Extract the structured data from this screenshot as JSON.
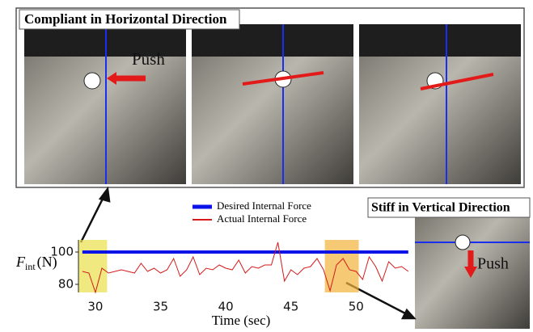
{
  "chart_data": {
    "type": "line",
    "panel_title": "Compliant in Horizontal Direction",
    "side_title": "Stiff in Vertical Direction",
    "push_labels": [
      "Push",
      "Push"
    ],
    "y_label": {
      "main": "F",
      "sub": "int",
      "unit": "(N)"
    },
    "x_label": "Time (sec)",
    "x": [
      29,
      29.5,
      30,
      30.5,
      31,
      31.5,
      32,
      32.5,
      33,
      33.5,
      34,
      34.5,
      35,
      35.5,
      36,
      36.5,
      37,
      37.5,
      38,
      38.5,
      39,
      39.5,
      40,
      40.5,
      41,
      41.5,
      42,
      42.5,
      43,
      43.5,
      44,
      44.5,
      45,
      45.5,
      46,
      46.5,
      47,
      47.5,
      48,
      48.5,
      49,
      49.5,
      50,
      50.5,
      51,
      51.5,
      52,
      52.5,
      53,
      53.5,
      54
    ],
    "series": [
      {
        "name": "Desired Internal Force",
        "color": "#0a14e6",
        "width": 4,
        "values": [
          100,
          100,
          100,
          100,
          100,
          100,
          100,
          100,
          100,
          100,
          100,
          100,
          100,
          100,
          100,
          100,
          100,
          100,
          100,
          100,
          100,
          100,
          100,
          100,
          100,
          100,
          100,
          100,
          100,
          100,
          100,
          100,
          100,
          100,
          100,
          100,
          100,
          100,
          100,
          100,
          100,
          100,
          100,
          100,
          100,
          100,
          100,
          100,
          100,
          100,
          100
        ]
      },
      {
        "name": "Actual Internal Force",
        "color": "#d41a1a",
        "width": 1,
        "values": [
          88,
          87,
          75,
          90,
          87,
          88,
          89,
          88,
          87,
          93,
          88,
          90,
          87,
          89,
          96,
          85,
          89,
          97,
          86,
          90,
          89,
          92,
          90,
          89,
          95,
          87,
          91,
          90,
          92,
          92,
          106,
          82,
          89,
          86,
          90,
          91,
          96,
          89,
          76,
          92,
          96,
          89,
          88,
          83,
          97,
          91,
          82,
          94,
          90,
          91,
          88
        ]
      }
    ],
    "highlights": [
      {
        "range": [
          28.7,
          30.9
        ],
        "color": "#e8e04a"
      },
      {
        "range": [
          47.6,
          50.2
        ],
        "color": "#f2b23a"
      }
    ],
    "xlim": [
      28.7,
      54.2
    ],
    "ylim": [
      75,
      107.5
    ],
    "xticks": [
      30,
      35,
      40,
      45,
      50
    ],
    "yticks": [
      80,
      100
    ]
  }
}
